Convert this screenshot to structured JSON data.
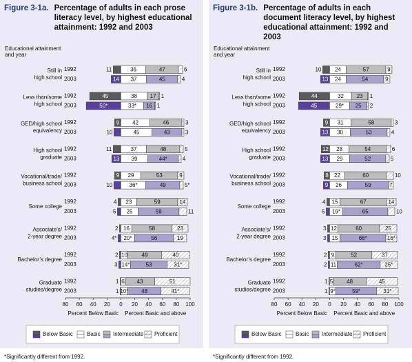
{
  "chart_data": [
    {
      "type": "bar",
      "orientation": "horizontal",
      "stacked": true,
      "diverging_series": 0,
      "figure_label": "Figure 3-1a.",
      "title": "Percentage of adults in each prose literacy level, by highest educational attainment: 1992 and 2003",
      "column_header": [
        "Educational attainment",
        "and year"
      ],
      "categories": [
        [
          "Still in",
          "high school"
        ],
        [
          "Less than/some",
          "high school"
        ],
        [
          "GED/high school",
          "equivalency"
        ],
        [
          "High school",
          "graduate"
        ],
        [
          "Vocational/trade/",
          "business school"
        ],
        [
          "Some college"
        ],
        [
          "Associate’s/",
          "2-year degree"
        ],
        [
          "Bachelor’s degree"
        ],
        [
          "Graduate",
          "studies/degree"
        ]
      ],
      "years": [
        "1992",
        "2003"
      ],
      "series": [
        {
          "name": "Below Basic",
          "colors": [
            "#5a5a5c",
            "#5b3f9e"
          ],
          "values": [
            [
              11,
              14
            ],
            [
              45,
              50
            ],
            [
              9,
              10
            ],
            [
              11,
              13
            ],
            [
              9,
              10
            ],
            [
              4,
              5
            ],
            [
              2,
              4
            ],
            [
              2,
              3
            ],
            [
              1,
              1
            ]
          ],
          "value_labels": [
            [
              null,
              null
            ],
            [
              null,
              "50*"
            ],
            [
              null,
              null
            ],
            [
              null,
              null
            ],
            [
              null,
              null
            ],
            [
              null,
              null
            ],
            [
              null,
              "4*"
            ],
            [
              null,
              null
            ],
            [
              null,
              null
            ]
          ]
        },
        {
          "name": "Basic",
          "colors": [
            "#ffffff",
            "#ffffff"
          ],
          "values": [
            [
              36,
              37
            ],
            [
              38,
              33
            ],
            [
              42,
              45
            ],
            [
              37,
              39
            ],
            [
              29,
              36
            ],
            [
              23,
              25
            ],
            [
              16,
              20
            ],
            [
              10,
              14
            ],
            [
              6,
              10
            ]
          ],
          "value_labels": [
            [
              null,
              null
            ],
            [
              null,
              "33*"
            ],
            [
              null,
              null
            ],
            [
              null,
              null
            ],
            [
              null,
              "36*"
            ],
            [
              null,
              null
            ],
            [
              null,
              "20*"
            ],
            [
              null,
              "14*"
            ],
            [
              null,
              "10*"
            ]
          ]
        },
        {
          "name": "Intermediate",
          "colors": [
            "#bdbdbf",
            "#aaa0cc"
          ],
          "values": [
            [
              47,
              45
            ],
            [
              17,
              16
            ],
            [
              46,
              43
            ],
            [
              48,
              44
            ],
            [
              53,
              49
            ],
            [
              59,
              59
            ],
            [
              58,
              56
            ],
            [
              49,
              53
            ],
            [
              43,
              48
            ]
          ],
          "value_labels": [
            [
              null,
              null
            ],
            [
              null,
              null
            ],
            [
              null,
              null
            ],
            [
              null,
              "44*"
            ],
            [
              null,
              null
            ],
            [
              null,
              null
            ],
            [
              null,
              null
            ],
            [
              null,
              null
            ],
            [
              null,
              null
            ]
          ]
        },
        {
          "name": "Proficient",
          "colors": [
            "#ffffff",
            "#ffffff"
          ],
          "hatch": true,
          "values": [
            [
              6,
              4
            ],
            [
              1,
              1
            ],
            [
              3,
              3
            ],
            [
              5,
              4
            ],
            [
              9,
              5
            ],
            [
              14,
              11
            ],
            [
              23,
              19
            ],
            [
              40,
              31
            ],
            [
              51,
              41
            ]
          ],
          "value_labels": [
            [
              null,
              null
            ],
            [
              null,
              null
            ],
            [
              null,
              null
            ],
            [
              null,
              null
            ],
            [
              null,
              "5*"
            ],
            [
              null,
              null
            ],
            [
              null,
              null
            ],
            [
              null,
              "31*"
            ],
            [
              null,
              "41*"
            ]
          ]
        }
      ],
      "xlim": [
        -80,
        100
      ],
      "xticks": [
        {
          "value": -80,
          "label": "80"
        },
        {
          "value": -60,
          "label": "60"
        },
        {
          "value": -40,
          "label": "40"
        },
        {
          "value": -20,
          "label": "20"
        },
        0,
        20,
        40,
        60,
        80,
        100
      ],
      "xlabel_left": "Percent Below Basic",
      "xlabel_right": "Percent Basic and above",
      "legend_position": "bottom",
      "footnote": "*Significantly different from 1992."
    },
    {
      "type": "bar",
      "orientation": "horizontal",
      "stacked": true,
      "diverging_series": 0,
      "figure_label": "Figure 3-1b.",
      "title": "Percentage of adults in each document literacy level, by highest educational attainment: 1992 and 2003",
      "column_header": [
        "Educational attainment",
        "and year"
      ],
      "categories": [
        [
          "Still in",
          "high school"
        ],
        [
          "Less than/some",
          "high school"
        ],
        [
          "GED/high school",
          "equivalency"
        ],
        [
          "High school",
          "graduate"
        ],
        [
          "Vocational/trade/",
          "business school"
        ],
        [
          "Some college"
        ],
        [
          "Associate’s/",
          "2-year degree"
        ],
        [
          "Bachelor’s degree"
        ],
        [
          "Graduate",
          "studies/degree"
        ]
      ],
      "years": [
        "1992",
        "2003"
      ],
      "series": [
        {
          "name": "Below Basic",
          "colors": [
            "#5a5a5c",
            "#5b3f9e"
          ],
          "values": [
            [
              10,
              13
            ],
            [
              44,
              45
            ],
            [
              9,
              13
            ],
            [
              12,
              13
            ],
            [
              8,
              9
            ],
            [
              4,
              5
            ],
            [
              3,
              3
            ],
            [
              2,
              2
            ],
            [
              1,
              1
            ]
          ]
        },
        {
          "name": "Basic",
          "colors": [
            "#ffffff",
            "#ffffff"
          ],
          "values": [
            [
              24,
              24
            ],
            [
              32,
              29
            ],
            [
              31,
              30
            ],
            [
              28,
              29
            ],
            [
              22,
              26
            ],
            [
              15,
              19
            ],
            [
              12,
              15
            ],
            [
              9,
              11
            ],
            [
              5,
              9
            ]
          ],
          "value_labels": [
            [
              null,
              null
            ],
            [
              null,
              "29*"
            ],
            [
              null,
              null
            ],
            [
              null,
              null
            ],
            [
              null,
              null
            ],
            [
              null,
              "19*"
            ],
            [
              null,
              null
            ],
            [
              null,
              null
            ],
            [
              null,
              "9*"
            ]
          ]
        },
        {
          "name": "Intermediate",
          "colors": [
            "#bdbdbf",
            "#aaa0cc"
          ],
          "values": [
            [
              57,
              54
            ],
            [
              23,
              25
            ],
            [
              58,
              53
            ],
            [
              54,
              52
            ],
            [
              60,
              59
            ],
            [
              67,
              65
            ],
            [
              60,
              66
            ],
            [
              52,
              62
            ],
            [
              48,
              59
            ]
          ],
          "value_labels": [
            [
              null,
              null
            ],
            [
              null,
              null
            ],
            [
              null,
              null
            ],
            [
              null,
              null
            ],
            [
              null,
              null
            ],
            [
              null,
              null
            ],
            [
              null,
              "66*"
            ],
            [
              null,
              "62*"
            ],
            [
              null,
              "59*"
            ]
          ]
        },
        {
          "name": "Proficient",
          "colors": [
            "#ffffff",
            "#ffffff"
          ],
          "hatch": true,
          "values": [
            [
              9,
              9
            ],
            [
              1,
              2
            ],
            [
              3,
              4
            ],
            [
              6,
              5
            ],
            [
              10,
              7
            ],
            [
              14,
              10
            ],
            [
              25,
              16
            ],
            [
              37,
              25
            ],
            [
              45,
              31
            ]
          ],
          "value_labels": [
            [
              null,
              null
            ],
            [
              null,
              null
            ],
            [
              null,
              null
            ],
            [
              null,
              null
            ],
            [
              null,
              null
            ],
            [
              null,
              null
            ],
            [
              null,
              "16*"
            ],
            [
              null,
              "25*"
            ],
            [
              null,
              "31*"
            ]
          ]
        }
      ],
      "xlim": [
        -80,
        100
      ],
      "xticks": [
        {
          "value": -80,
          "label": "80"
        },
        {
          "value": -60,
          "label": "60"
        },
        {
          "value": -40,
          "label": "40"
        },
        {
          "value": -20,
          "label": "20"
        },
        0,
        20,
        40,
        60,
        80,
        100
      ],
      "xlabel_left": "Percent Below Basic",
      "xlabel_right": "Percent Basic and above",
      "legend_position": "bottom",
      "footnote": "*Significantly different from 1992."
    }
  ]
}
